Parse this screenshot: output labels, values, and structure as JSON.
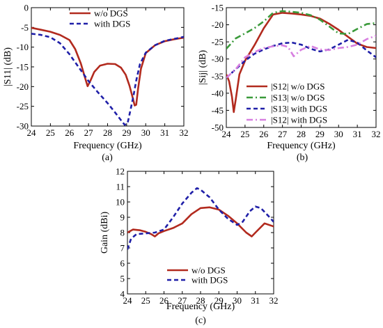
{
  "chart_data": [
    {
      "id": "a",
      "type": "line",
      "panel_label": "(a)",
      "xlabel": "Frequency (GHz)",
      "ylabel": "|S11| (dB)",
      "xlim": [
        24,
        32
      ],
      "ylim": [
        -30,
        0
      ],
      "xticks": [
        24,
        25,
        26,
        27,
        28,
        29,
        30,
        31,
        32
      ],
      "yticks": [
        0,
        -5,
        -10,
        -15,
        -20,
        -25,
        -30
      ],
      "legend_position": "top-right",
      "series": [
        {
          "name": "w/o DGS",
          "color": "#b22a1e",
          "style": "solid",
          "x": [
            24,
            24.5,
            25,
            25.5,
            26,
            26.3,
            26.6,
            26.8,
            26.95,
            27.1,
            27.3,
            27.6,
            28,
            28.4,
            28.7,
            28.95,
            29.15,
            29.3,
            29.42,
            29.5,
            29.6,
            29.75,
            30,
            30.5,
            31,
            31.5,
            32
          ],
          "y": [
            -5.1,
            -5.6,
            -6.1,
            -6.9,
            -8.2,
            -10.5,
            -14.2,
            -17.5,
            -19.9,
            -18.5,
            -16.3,
            -14.7,
            -14.2,
            -14.3,
            -15.2,
            -17,
            -19.8,
            -22.5,
            -24.8,
            -24.6,
            -20.5,
            -15.5,
            -11.5,
            -9.5,
            -8.5,
            -8,
            -7.6
          ]
        },
        {
          "name": "with DGS",
          "color": "#1f1fa8",
          "style": "dashed",
          "x": [
            24,
            24.5,
            25,
            25.5,
            26,
            26.5,
            27,
            27.5,
            28,
            28.4,
            28.7,
            28.9,
            29.05,
            29.2,
            29.35,
            29.5,
            29.7,
            30,
            30.5,
            31,
            31.5,
            32
          ],
          "y": [
            -6.6,
            -6.9,
            -7.5,
            -9,
            -11.8,
            -15.2,
            -18.6,
            -21.5,
            -24.2,
            -26.6,
            -28.5,
            -29.7,
            -29.3,
            -26,
            -22.5,
            -18.5,
            -14.3,
            -11.4,
            -9.5,
            -8.4,
            -7.9,
            -7.4
          ]
        }
      ]
    },
    {
      "id": "b",
      "type": "line",
      "panel_label": "(b)",
      "xlabel": "Frequency (GHz)",
      "ylabel": "|Sij| (dB)",
      "xlim": [
        24,
        32
      ],
      "ylim": [
        -50,
        -15
      ],
      "xticks": [
        24,
        25,
        26,
        27,
        28,
        29,
        30,
        31,
        32
      ],
      "yticks": [
        -15,
        -20,
        -25,
        -30,
        -35,
        -40,
        -45,
        -50
      ],
      "legend_position": "bottom-right",
      "series": [
        {
          "name": "|S12| w/o DGS",
          "color": "#b22a1e",
          "style": "solid",
          "x": [
            24,
            24.15,
            24.3,
            24.4,
            24.5,
            24.7,
            25,
            25.5,
            26,
            26.5,
            27,
            27.5,
            28,
            28.5,
            29,
            29.5,
            30,
            30.5,
            31,
            31.5,
            32
          ],
          "y": [
            -34.5,
            -36.5,
            -41,
            -45.5,
            -42,
            -34.5,
            -30.5,
            -26,
            -21,
            -17,
            -16.5,
            -16.7,
            -17,
            -17.4,
            -18.2,
            -19.7,
            -21.5,
            -23.5,
            -25.5,
            -26.5,
            -26.8
          ]
        },
        {
          "name": "|S13| w/o DGS",
          "color": "#3a9a3a",
          "style": "dashdot",
          "x": [
            24,
            24.5,
            25,
            25.5,
            26,
            26.5,
            27,
            27.5,
            28,
            28.5,
            29,
            29.5,
            30,
            30.5,
            31,
            31.5,
            32
          ],
          "y": [
            -27,
            -24,
            -22.5,
            -21,
            -19,
            -16.5,
            -16,
            -16.2,
            -16.5,
            -17.2,
            -18.5,
            -20.5,
            -22.5,
            -22.7,
            -21.2,
            -19.8,
            -19.5
          ]
        },
        {
          "name": "|S13| with DGS",
          "color": "#1f1fa8",
          "style": "dashed",
          "x": [
            24,
            24.5,
            25,
            25.5,
            26,
            26.5,
            27,
            27.5,
            28,
            28.5,
            29,
            29.5,
            30,
            30.5,
            31,
            31.5,
            32
          ],
          "y": [
            -35.5,
            -33,
            -30.5,
            -28.5,
            -27.2,
            -26.2,
            -25.4,
            -25.2,
            -25.8,
            -27,
            -27.8,
            -27.2,
            -25.8,
            -24.4,
            -25.2,
            -27.5,
            -29.5
          ]
        },
        {
          "name": "|S12| with DGS",
          "color": "#d77fe0",
          "style": "dashdot",
          "x": [
            24,
            24.5,
            25,
            25.5,
            26,
            26.5,
            27,
            27.3,
            27.6,
            28,
            28.5,
            29,
            29.5,
            30,
            30.5,
            31,
            31.5,
            32
          ],
          "y": [
            -35.5,
            -33,
            -29.5,
            -28,
            -26.8,
            -26.3,
            -26,
            -26.5,
            -29.2,
            -27.3,
            -26.2,
            -27.2,
            -27.4,
            -26.8,
            -26.5,
            -25.8,
            -24.2,
            -23.2
          ]
        }
      ]
    },
    {
      "id": "c",
      "type": "line",
      "panel_label": "(c)",
      "xlabel": "Frequency (GHz)",
      "ylabel": "Gain (dBi)",
      "xlim": [
        24,
        32
      ],
      "ylim": [
        4,
        12
      ],
      "xticks": [
        24,
        25,
        26,
        27,
        28,
        29,
        30,
        31,
        32
      ],
      "yticks": [
        4,
        5,
        6,
        7,
        8,
        9,
        10,
        11,
        12
      ],
      "legend_position": "bottom-center",
      "series": [
        {
          "name": "w/o DGS",
          "color": "#b22a1e",
          "style": "solid",
          "x": [
            24,
            24.3,
            24.7,
            25,
            25.3,
            25.5,
            25.7,
            26,
            26.5,
            27,
            27.5,
            28,
            28.5,
            29,
            29.5,
            30,
            30.5,
            30.8,
            31,
            31.5,
            32
          ],
          "y": [
            8,
            8.2,
            8.15,
            8.05,
            7.9,
            7.75,
            7.95,
            8.1,
            8.3,
            8.6,
            9.2,
            9.6,
            9.65,
            9.5,
            9.1,
            8.6,
            8,
            7.75,
            8,
            8.6,
            8.4
          ]
        },
        {
          "name": "with DGS",
          "color": "#1f1fa8",
          "style": "dashed",
          "x": [
            24,
            24.2,
            24.5,
            25,
            25.5,
            26,
            26.5,
            27,
            27.5,
            27.8,
            28,
            28.5,
            29,
            29.5,
            30,
            30.3,
            30.7,
            31,
            31.3,
            31.7,
            32
          ],
          "y": [
            6.9,
            7.6,
            7.9,
            7.95,
            8,
            8.2,
            9,
            9.9,
            10.6,
            10.9,
            10.8,
            10.3,
            9.5,
            8.9,
            8.5,
            8.7,
            9.4,
            9.7,
            9.6,
            9.1,
            8.7
          ]
        }
      ]
    }
  ]
}
